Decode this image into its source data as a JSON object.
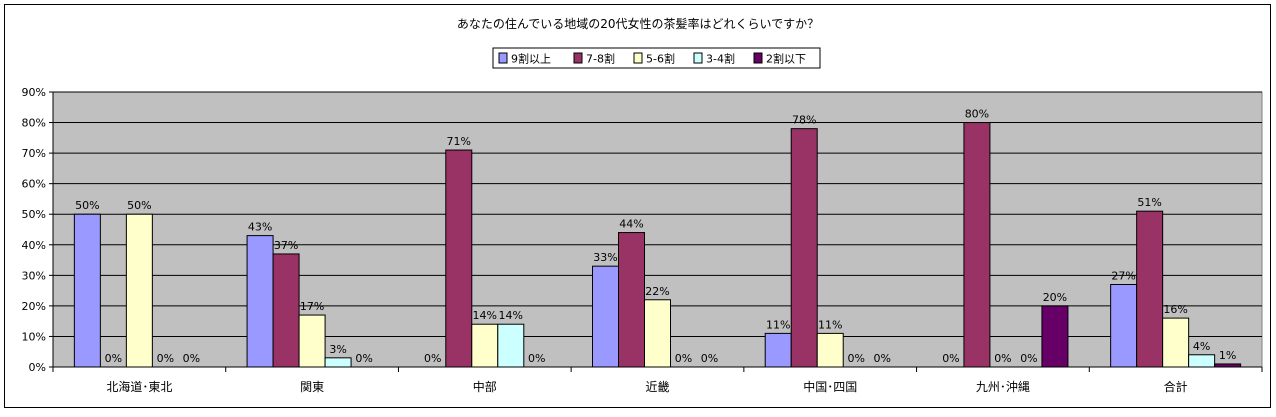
{
  "chart_data": {
    "type": "bar",
    "title": "あなたの住んでいる地域の20代女性の茶髪率はどれくらいですか？",
    "categories": [
      "北海道･東北",
      "関東",
      "中部",
      "近畿",
      "中国･四国",
      "九州･沖縄",
      "合計"
    ],
    "series": [
      {
        "name": "9割以上",
        "color": "#9999ff",
        "values": [
          50,
          43,
          0,
          33,
          11,
          0,
          27
        ]
      },
      {
        "name": "7-8割",
        "color": "#993366",
        "values": [
          0,
          37,
          71,
          44,
          78,
          80,
          51
        ]
      },
      {
        "name": "5-6割",
        "color": "#ffffcc",
        "values": [
          50,
          17,
          14,
          22,
          11,
          0,
          16
        ]
      },
      {
        "name": "3-4割",
        "color": "#ccffff",
        "values": [
          0,
          3,
          14,
          0,
          0,
          0,
          4
        ]
      },
      {
        "name": "2割以下",
        "color": "#660066",
        "values": [
          0,
          0,
          0,
          0,
          0,
          20,
          1
        ]
      }
    ],
    "value_suffix": "%",
    "ylim": [
      0,
      90
    ],
    "yticks": [
      "0%",
      "10%",
      "20%",
      "30%",
      "40%",
      "50%",
      "60%",
      "70%",
      "80%",
      "90%"
    ],
    "plot_background": "#c0c0c0",
    "grid": true,
    "legend_position": "top-center"
  }
}
